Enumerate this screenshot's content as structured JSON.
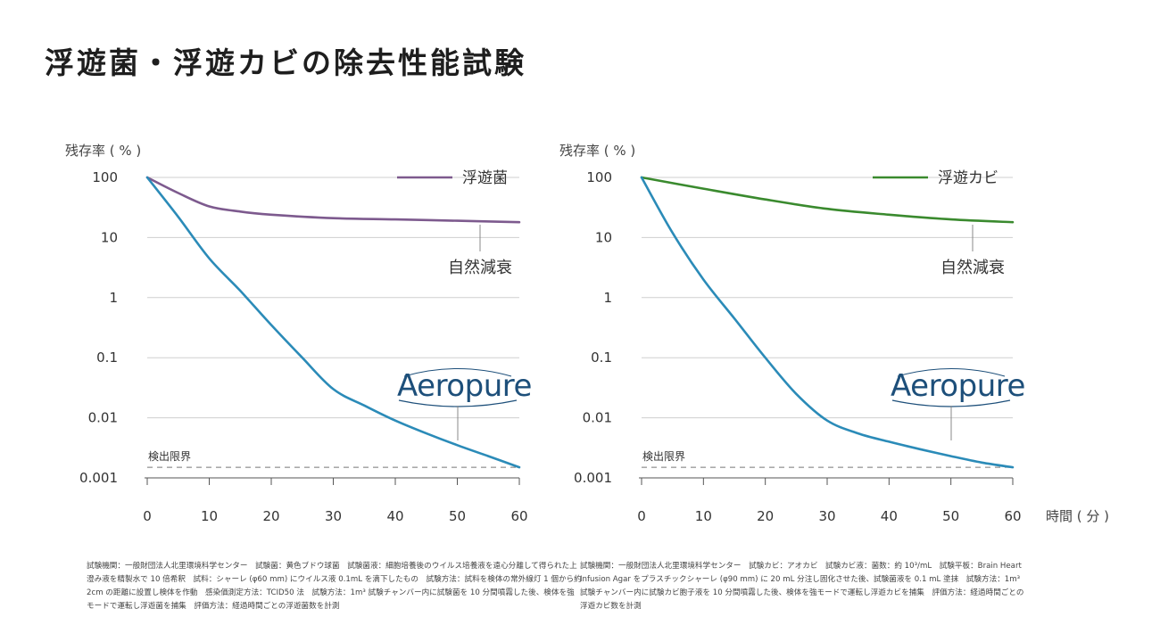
{
  "title": "浮遊菌・浮遊カビの除去性能試験",
  "charts": [
    {
      "type": "line",
      "ylabel": "残存率 ( % )",
      "y_ticks": [
        "100",
        "10",
        "1",
        "0.1",
        "0.01",
        "0.001"
      ],
      "x_ticks": [
        "0",
        "10",
        "20",
        "30",
        "40",
        "50",
        "60"
      ],
      "xlim": [
        0,
        60
      ],
      "ylim": [
        0.001,
        100
      ],
      "yscale": "log",
      "grid": true,
      "legend_position": "top-right",
      "detection_limit_label": "検出限界",
      "detection_limit_value": 0.0015,
      "natural_decay_label": "自然減衰",
      "brand_label": "Aeropure",
      "series": [
        {
          "name": "浮遊菌",
          "color": "#7d5a8e",
          "x": [
            0,
            5,
            10,
            15,
            20,
            30,
            40,
            50,
            60
          ],
          "y": [
            100,
            55,
            33,
            27,
            24,
            21,
            20,
            19,
            18
          ]
        },
        {
          "color": "#2b8bb8",
          "x": [
            0,
            5,
            10,
            15,
            20,
            25,
            30,
            35,
            40,
            45,
            50,
            55,
            60
          ],
          "y": [
            100,
            22,
            4.5,
            1.3,
            0.35,
            0.1,
            0.03,
            0.016,
            0.009,
            0.0055,
            0.0035,
            0.0023,
            0.0015
          ]
        }
      ]
    },
    {
      "type": "line",
      "ylabel": "残存率 ( % )",
      "xlabel": "時間 ( 分 )",
      "y_ticks": [
        "100",
        "10",
        "1",
        "0.1",
        "0.01",
        "0.001"
      ],
      "x_ticks": [
        "0",
        "10",
        "20",
        "30",
        "40",
        "50",
        "60"
      ],
      "xlim": [
        0,
        60
      ],
      "ylim": [
        0.001,
        100
      ],
      "yscale": "log",
      "grid": true,
      "legend_position": "top-right",
      "detection_limit_label": "検出限界",
      "detection_limit_value": 0.0015,
      "natural_decay_label": "自然減衰",
      "brand_label": "Aeropure",
      "series": [
        {
          "name": "浮遊カビ",
          "color": "#3a8a2e",
          "x": [
            0,
            10,
            20,
            30,
            40,
            50,
            60
          ],
          "y": [
            100,
            65,
            43,
            30,
            24,
            20,
            18
          ]
        },
        {
          "color": "#2b8bb8",
          "x": [
            0,
            5,
            10,
            15,
            20,
            25,
            30,
            35,
            40,
            45,
            50,
            55,
            60
          ],
          "y": [
            100,
            12,
            2.0,
            0.45,
            0.1,
            0.025,
            0.009,
            0.0055,
            0.004,
            0.003,
            0.0023,
            0.0018,
            0.0015
          ]
        }
      ]
    }
  ],
  "footnotes": {
    "left": "試験機関：一般財団法人北里環境科学センター　試験菌：黄色ブドウ球菌　試験菌液：細胞培養後のウイルス培養液を遠心分離して得られた上澄み液を精製水で 10 倍希釈　試料：シャーレ (φ60 mm) にウイルス液 0.1mL を滴下したもの　試験方法：試料を検体の常外線灯 1 個から約 2cm の距離に設置し検体を作動　感染価測定方法：TCID50 法　試験方法：1m³ 試験チャンバー内に試験菌を 10 分間噴霧した後、検体を強モードで運転し浮遊菌を捕集　評価方法：経過時間ごとの浮遊菌数を計測",
    "right": "試験機関：一般財団法人北里環境科学センター　試験カビ：アオカビ　試験カビ液：菌数：約 10³/mL　試験平板：Brain Heart Infusion Agar をプラスチックシャーレ (φ90 mm) に 20 mL 分注し固化させた後、試験菌液を 0.1 mL 塗抹　試験方法：1m³ 試験チャンバー内に試験カビ胞子液を 10 分間噴霧した後、検体を強モードで運転し浮遊カビを捕集　評価方法：経過時間ごとの浮遊カビ数を計測"
  }
}
